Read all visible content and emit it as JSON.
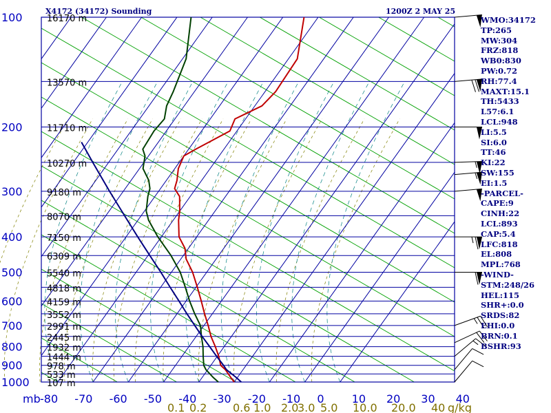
{
  "header": {
    "station": "X4172 (34172) Sounding",
    "datetime": "1200Z  2 MAY 25"
  },
  "indices": [
    "WMO:34172",
    "TP:265",
    "MW:304",
    "FRZ:818",
    "WB0:830",
    "PW:0.72",
    "RH:77.4",
    "MAXT:15.1",
    "TH:5433",
    "L57:6.1",
    "LCL:948",
    "LI:5.5",
    "SI:6.0",
    "TT:46",
    "KI:22",
    "SW:155",
    "EI:1.5",
    "-PARCEL-",
    "CAPE:9",
    "CINH:22",
    "LCL:893",
    "CAP:5.4",
    "LFC:818",
    "EL:808",
    "MPL:768",
    "-WIND-",
    "STM:248/26",
    "HEL:115",
    "SHR+:0.0",
    "SRDS:82",
    "EHI:0.0",
    "BRN:0.1",
    "BSHR:93"
  ],
  "chart_data": {
    "type": "line",
    "subtype": "skew-t log-p sounding",
    "y_axis": {
      "scale": "log",
      "label": "mb",
      "ylim": [
        1000,
        100
      ],
      "ticks": [
        100,
        200,
        300,
        400,
        500,
        600,
        700,
        800,
        900,
        1000
      ],
      "heights": [
        {
          "p": 100,
          "label": "16170 m"
        },
        {
          "p": 150,
          "label": "13570 m"
        },
        {
          "p": 200,
          "label": "11710 m"
        },
        {
          "p": 250,
          "label": "10270 m"
        },
        {
          "p": 300,
          "label": "9180 m"
        },
        {
          "p": 350,
          "label": "8070 m"
        },
        {
          "p": 400,
          "label": "7150 m"
        },
        {
          "p": 450,
          "label": "6309 m"
        },
        {
          "p": 500,
          "label": "5540 m"
        },
        {
          "p": 550,
          "label": "4818 m"
        },
        {
          "p": 600,
          "label": "4159 m"
        },
        {
          "p": 650,
          "label": "3552 m"
        },
        {
          "p": 700,
          "label": "2991 m"
        },
        {
          "p": 750,
          "label": "2445 m"
        },
        {
          "p": 800,
          "label": "1932 m"
        },
        {
          "p": 850,
          "label": "1444 m"
        },
        {
          "p": 900,
          "label": "978 m"
        },
        {
          "p": 950,
          "label": "533 m"
        },
        {
          "p": 1000,
          "label": "107 m"
        }
      ]
    },
    "x_axis": {
      "label": "°C",
      "ticks": [
        "-80",
        "-70",
        "-60",
        "-50",
        "-40",
        "-30",
        "-20",
        "-10",
        "0",
        "10",
        "20",
        "30",
        "40"
      ]
    },
    "mixing_ratio_labels": [
      "0.1",
      "0.2",
      "0.6",
      "1.0",
      "2.0",
      "3.0",
      "5.0",
      "10.0",
      "20.0",
      "40",
      "g/kg"
    ],
    "series": [
      {
        "key": "temperature",
        "color": "#c00000",
        "points": [
          [
            1000,
            10.0
          ],
          [
            970,
            8.0
          ],
          [
            925,
            5.0
          ],
          [
            900,
            2.8
          ],
          [
            850,
            0.4
          ],
          [
            800,
            -2.5
          ],
          [
            750,
            -5.8
          ],
          [
            700,
            -8.8
          ],
          [
            650,
            -12.2
          ],
          [
            600,
            -15.7
          ],
          [
            550,
            -19.6
          ],
          [
            500,
            -24.0
          ],
          [
            460,
            -28.5
          ],
          [
            430,
            -31.0
          ],
          [
            400,
            -35.0
          ],
          [
            360,
            -38.5
          ],
          [
            340,
            -40.0
          ],
          [
            310,
            -43.0
          ],
          [
            295,
            -46.0
          ],
          [
            280,
            -47.0
          ],
          [
            260,
            -49.0
          ],
          [
            240,
            -50.0
          ],
          [
            230,
            -48.0
          ],
          [
            205,
            -42.0
          ],
          [
            190,
            -43.0
          ],
          [
            175,
            -38.0
          ],
          [
            160,
            -37.0
          ],
          [
            130,
            -37.5
          ],
          [
            100,
            -44.0
          ]
        ]
      },
      {
        "key": "dewpoint",
        "color": "#004000",
        "points": [
          [
            1000,
            5.5
          ],
          [
            970,
            3.0
          ],
          [
            925,
            -0.5
          ],
          [
            900,
            -2.0
          ],
          [
            850,
            -4.0
          ],
          [
            800,
            -6.0
          ],
          [
            750,
            -8.5
          ],
          [
            700,
            -11.0
          ],
          [
            650,
            -15.0
          ],
          [
            600,
            -19.0
          ],
          [
            550,
            -23.0
          ],
          [
            500,
            -27.5
          ],
          [
            450,
            -33.5
          ],
          [
            400,
            -41.0
          ],
          [
            360,
            -47.0
          ],
          [
            340,
            -49.5
          ],
          [
            310,
            -52.0
          ],
          [
            295,
            -53.0
          ],
          [
            280,
            -55.0
          ],
          [
            260,
            -59.0
          ],
          [
            240,
            -61.0
          ],
          [
            230,
            -63.0
          ],
          [
            205,
            -63.5
          ],
          [
            190,
            -63.0
          ],
          [
            175,
            -65.0
          ],
          [
            160,
            -66.0
          ],
          [
            130,
            -69.0
          ],
          [
            100,
            -76.0
          ]
        ]
      },
      {
        "key": "parcel",
        "color": "#000080",
        "points": [
          [
            1000,
            12.0
          ],
          [
            970,
            9.5
          ],
          [
            925,
            5.3
          ],
          [
            900,
            3.6
          ],
          [
            850,
            -0.2
          ],
          [
            800,
            -4.1
          ],
          [
            750,
            -8.3
          ],
          [
            700,
            -12.6
          ],
          [
            650,
            -17.2
          ],
          [
            600,
            -22.0
          ],
          [
            550,
            -27.3
          ],
          [
            500,
            -33.0
          ],
          [
            450,
            -39.5
          ],
          [
            400,
            -46.7
          ],
          [
            350,
            -54.7
          ],
          [
            300,
            -63.9
          ],
          [
            250,
            -74.5
          ],
          [
            220,
            -81.8
          ]
        ]
      }
    ],
    "winds": [
      {
        "p": 100,
        "dir": 265,
        "spd": 50
      },
      {
        "p": 150,
        "dir": 265,
        "spd": 70
      },
      {
        "p": 200,
        "dir": 270,
        "spd": 50
      },
      {
        "p": 250,
        "dir": 268,
        "spd": 55
      },
      {
        "p": 270,
        "dir": 265,
        "spd": 55
      },
      {
        "p": 300,
        "dir": 265,
        "spd": 50
      },
      {
        "p": 400,
        "dir": 270,
        "spd": 65
      },
      {
        "p": 500,
        "dir": 270,
        "spd": 60
      },
      {
        "p": 700,
        "dir": 250,
        "spd": 25
      },
      {
        "p": 780,
        "dir": 245,
        "spd": 20
      },
      {
        "p": 850,
        "dir": 230,
        "spd": 15
      },
      {
        "p": 925,
        "dir": 220,
        "spd": 10
      },
      {
        "p": 1000,
        "dir": 220,
        "spd": 10
      }
    ],
    "grid": true
  },
  "colors": {
    "isobar": "#0000a0",
    "dry_adiabat": "#00a000",
    "moist_adiabat": "#008080",
    "mixing_ratio": "#808000",
    "text": "#000080"
  }
}
